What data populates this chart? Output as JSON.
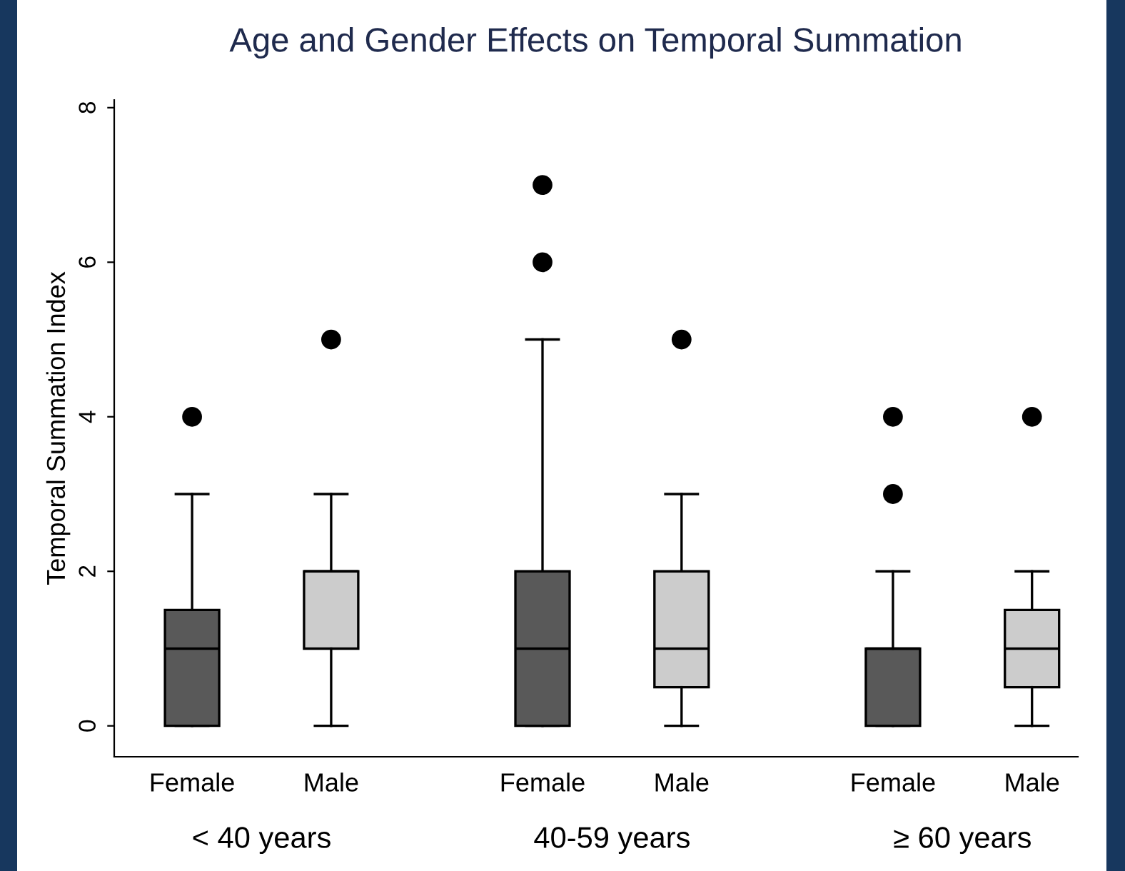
{
  "chart_data": {
    "type": "box",
    "title": "Age and Gender Effects on Temporal Summation",
    "ylabel": "Temporal Summation Index",
    "categories": [
      "Female",
      "Male",
      "Female",
      "Male",
      "Female",
      "Male"
    ],
    "colors": [
      "#595959",
      "#cccccc",
      "#595959",
      "#cccccc",
      "#595959",
      "#cccccc"
    ],
    "boxes": [
      {
        "low": 0,
        "q1": 0,
        "median": 1,
        "q3": 1.5,
        "high": 3,
        "outliers": [
          4
        ]
      },
      {
        "low": 0,
        "q1": 1,
        "median": 2,
        "q3": 2,
        "high": 3,
        "outliers": [
          5
        ]
      },
      {
        "low": 0,
        "q1": 0,
        "median": 1,
        "q3": 2,
        "high": 5,
        "outliers": [
          6,
          7
        ]
      },
      {
        "low": 0,
        "q1": 0.5,
        "median": 1,
        "q3": 2,
        "high": 3,
        "outliers": [
          5
        ]
      },
      {
        "low": 0,
        "q1": 0,
        "median": 1,
        "q3": 1,
        "high": 2,
        "outliers": [
          3,
          4
        ]
      },
      {
        "low": 0,
        "q1": 0.5,
        "median": 1,
        "q3": 1.5,
        "high": 2,
        "outliers": [
          4
        ]
      }
    ],
    "annotations": [
      "< 40 years",
      "40-59 years",
      "≥ 60 years"
    ],
    "ylim": [
      -0.4,
      8.1
    ],
    "yticks": [
      0,
      2,
      4,
      6,
      8
    ],
    "grid": false,
    "legend": false
  }
}
